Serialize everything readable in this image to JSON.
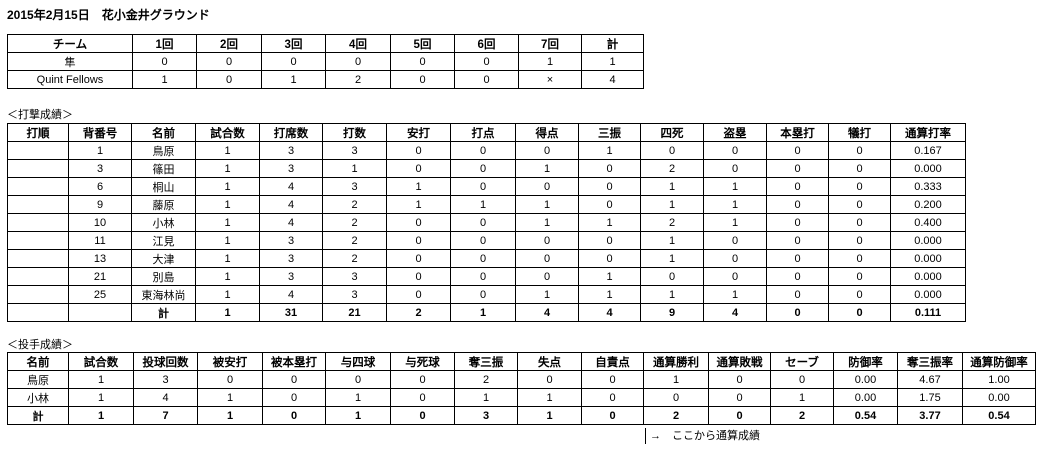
{
  "title": "2015年2月15日　花小金井グラウンド",
  "scoreboard": {
    "headers": [
      "チーム",
      "1回",
      "2回",
      "3回",
      "4回",
      "5回",
      "6回",
      "7回",
      "計"
    ],
    "rows": [
      [
        "隼",
        "0",
        "0",
        "0",
        "0",
        "0",
        "0",
        "1",
        "1"
      ],
      [
        "Quint Fellows",
        "1",
        "0",
        "1",
        "2",
        "0",
        "0",
        "×",
        "4"
      ]
    ]
  },
  "batting": {
    "section_label": "＜打撃成績＞",
    "headers": [
      "打順",
      "背番号",
      "名前",
      "試合数",
      "打席数",
      "打数",
      "安打",
      "打点",
      "得点",
      "三振",
      "四死",
      "盗塁",
      "本塁打",
      "犠打",
      "通算打率"
    ],
    "rows": [
      [
        "",
        "1",
        "鳥原",
        "1",
        "3",
        "3",
        "0",
        "0",
        "0",
        "1",
        "0",
        "0",
        "0",
        "0",
        "0.167"
      ],
      [
        "",
        "3",
        "篠田",
        "1",
        "3",
        "1",
        "0",
        "0",
        "1",
        "0",
        "2",
        "0",
        "0",
        "0",
        "0.000"
      ],
      [
        "",
        "6",
        "桐山",
        "1",
        "4",
        "3",
        "1",
        "0",
        "0",
        "0",
        "1",
        "1",
        "0",
        "0",
        "0.333"
      ],
      [
        "",
        "9",
        "藤原",
        "1",
        "4",
        "2",
        "1",
        "1",
        "1",
        "0",
        "1",
        "1",
        "0",
        "0",
        "0.200"
      ],
      [
        "",
        "10",
        "小林",
        "1",
        "4",
        "2",
        "0",
        "0",
        "1",
        "1",
        "2",
        "1",
        "0",
        "0",
        "0.400"
      ],
      [
        "",
        "11",
        "江見",
        "1",
        "3",
        "2",
        "0",
        "0",
        "0",
        "0",
        "1",
        "0",
        "0",
        "0",
        "0.000"
      ],
      [
        "",
        "13",
        "大津",
        "1",
        "3",
        "2",
        "0",
        "0",
        "0",
        "0",
        "1",
        "0",
        "0",
        "0",
        "0.000"
      ],
      [
        "",
        "21",
        "別島",
        "1",
        "3",
        "3",
        "0",
        "0",
        "0",
        "1",
        "0",
        "0",
        "0",
        "0",
        "0.000"
      ],
      [
        "",
        "25",
        "東海林尚",
        "1",
        "4",
        "3",
        "0",
        "0",
        "1",
        "1",
        "1",
        "1",
        "0",
        "0",
        "0.000"
      ]
    ],
    "total": [
      "",
      "",
      "計",
      "1",
      "31",
      "21",
      "2",
      "1",
      "4",
      "4",
      "9",
      "4",
      "0",
      "0",
      "0.111"
    ]
  },
  "pitching": {
    "section_label": "＜投手成績＞",
    "headers": [
      "名前",
      "試合数",
      "投球回数",
      "被安打",
      "被本塁打",
      "与四球",
      "与死球",
      "奪三振",
      "失点",
      "自責点",
      "通算勝利",
      "通算敗戦",
      "セーブ",
      "防御率",
      "奪三振率",
      "通算防御率"
    ],
    "rows": [
      [
        "鳥原",
        "1",
        "3",
        "0",
        "0",
        "0",
        "0",
        "2",
        "0",
        "0",
        "1",
        "0",
        "0",
        "0.00",
        "4.67",
        "1.00"
      ],
      [
        "小林",
        "1",
        "4",
        "1",
        "0",
        "1",
        "0",
        "1",
        "1",
        "0",
        "0",
        "0",
        "1",
        "0.00",
        "1.75",
        "0.00"
      ]
    ],
    "total": [
      "計",
      "1",
      "7",
      "1",
      "0",
      "1",
      "0",
      "3",
      "1",
      "0",
      "2",
      "0",
      "2",
      "0.54",
      "3.77",
      "0.54"
    ]
  },
  "note": "→　ここから通算成績"
}
